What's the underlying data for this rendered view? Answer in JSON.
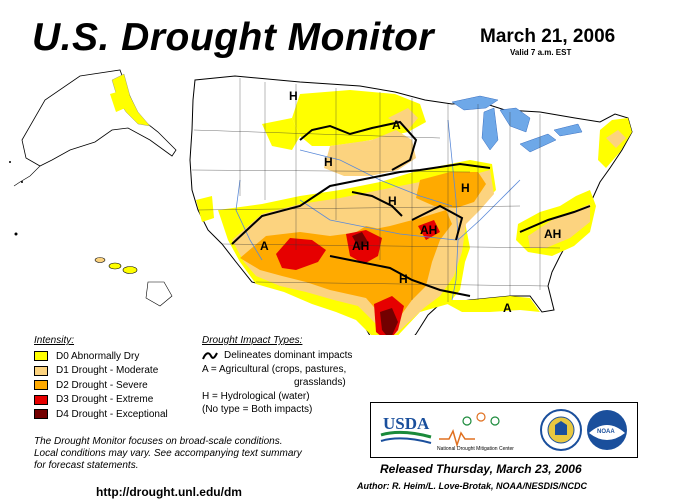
{
  "header": {
    "title": "U.S. Drought Monitor",
    "date": "March 21, 2006",
    "valid": "Valid 7 a.m. EST"
  },
  "colors": {
    "D0": "#ffff00",
    "D1": "#fcd37f",
    "D2": "#ffaa00",
    "D3": "#e60000",
    "D4": "#730000",
    "water": "#6ea8e8",
    "river": "#5b8ad9",
    "border": "#000000"
  },
  "legend": {
    "title": "Intensity:",
    "items": [
      {
        "label": "D0 Abnormally Dry",
        "color": "#ffff00"
      },
      {
        "label": "D1 Drought - Moderate",
        "color": "#fcd37f"
      },
      {
        "label": "D2 Drought - Severe",
        "color": "#ffaa00"
      },
      {
        "label": "D3 Drought - Extreme",
        "color": "#e60000"
      },
      {
        "label": "D4 Drought - Exceptional",
        "color": "#730000"
      }
    ]
  },
  "impact": {
    "title": "Drought Impact Types:",
    "line_desc": "Delineates dominant impacts",
    "a_line1": "A = Agricultural (crops, pastures,",
    "a_line2": "grasslands)",
    "h": "H = Hydrological (water)",
    "none": "(No type = Both impacts)"
  },
  "map_labels": {
    "a": "A",
    "h": "H",
    "ah": "AH"
  },
  "note": {
    "line1": "The Drought Monitor focuses on broad-scale conditions.",
    "line2": "Local conditions may vary.  See accompanying text summary",
    "line3": "for forecast statements."
  },
  "url": "http://drought.unl.edu/dm",
  "logos": {
    "usda": "USDA",
    "ndmc_line1": "National",
    "ndmc_line2": "Drought Mitigation Center",
    "noaa": "NOAA"
  },
  "footer": {
    "released": "Released Thursday, March 23, 2006",
    "author": "Author:  R. Heim/L. Love-Brotak, NOAA/NESDIS/NCDC"
  }
}
